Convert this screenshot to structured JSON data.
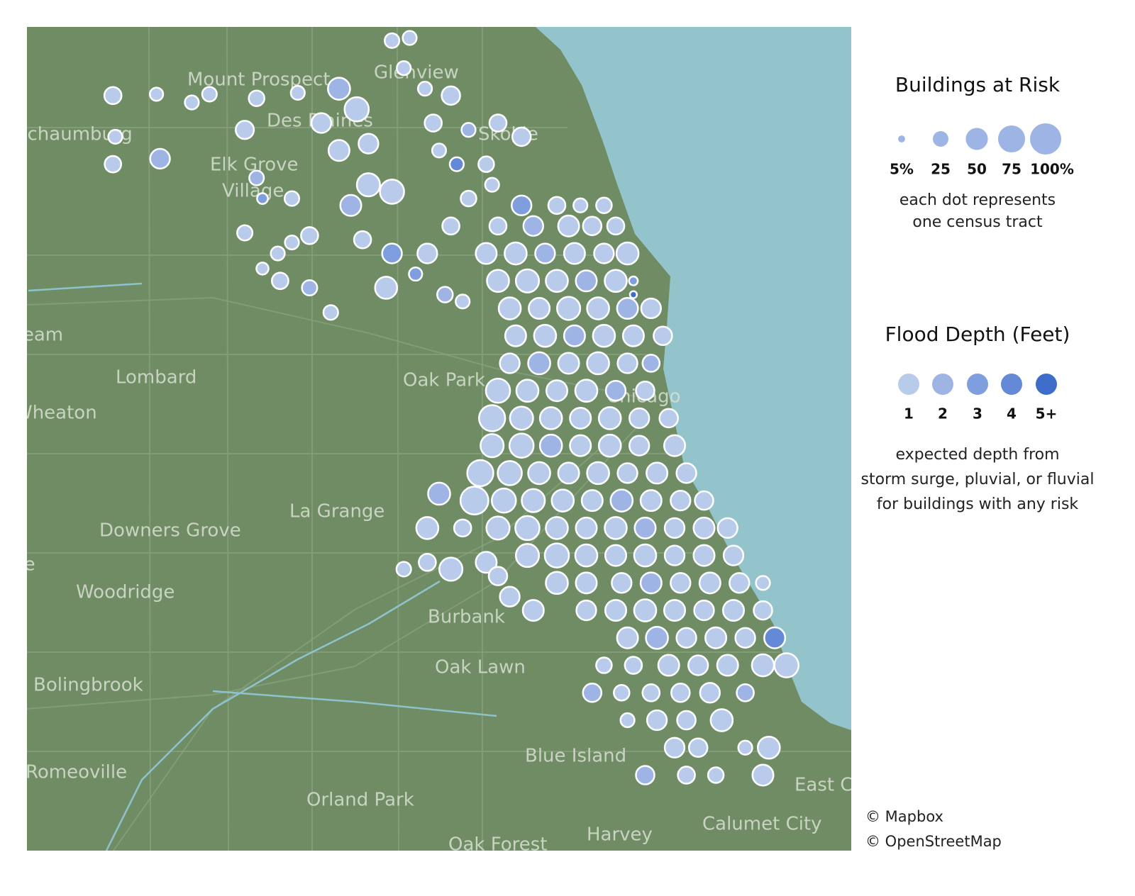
{
  "map": {
    "place_labels": [
      "Mount Prospect",
      "Glenview",
      "Des Plaines",
      "Skokie",
      "Schaumburg",
      "Elk Grove",
      "Village",
      "Stream",
      "Lombard",
      "Wheaton",
      "Oak Park",
      "Chicago",
      "La Grange",
      "Downers Grove",
      "Naperville",
      "Woodridge",
      "Burbank",
      "Oak Lawn",
      "Bolingbrook",
      "Blue Island",
      "Romeoville",
      "Orland Park",
      "Harvey",
      "East Chicago",
      "Calumet City",
      "Oak Forest"
    ],
    "tracts": [
      [
        -88.097,
        42.07,
        30,
        1
      ],
      [
        -88.095,
        42.04,
        20,
        1
      ],
      [
        -88.097,
        42.02,
        28,
        1
      ],
      [
        -88.06,
        42.071,
        18,
        1
      ],
      [
        -88.057,
        42.024,
        40,
        2
      ],
      [
        -88.03,
        42.065,
        20,
        1
      ],
      [
        -88.015,
        42.071,
        22,
        1
      ],
      [
        -87.975,
        42.068,
        25,
        1
      ],
      [
        -87.985,
        42.045,
        34,
        1
      ],
      [
        -87.975,
        42.01,
        22,
        2
      ],
      [
        -87.97,
        41.995,
        12,
        3
      ],
      [
        -87.985,
        41.97,
        24,
        1
      ],
      [
        -87.957,
        41.955,
        20,
        1
      ],
      [
        -87.97,
        41.944,
        15,
        1
      ],
      [
        -87.955,
        41.935,
        28,
        1
      ],
      [
        -87.93,
        41.93,
        24,
        2
      ],
      [
        -87.945,
        41.995,
        22,
        1
      ],
      [
        -87.945,
        41.963,
        20,
        1
      ],
      [
        -87.93,
        41.968,
        30,
        1
      ],
      [
        -87.912,
        41.912,
        22,
        1
      ],
      [
        -87.94,
        42.072,
        20,
        1
      ],
      [
        -87.92,
        42.05,
        40,
        1
      ],
      [
        -87.905,
        42.075,
        50,
        2
      ],
      [
        -87.89,
        42.06,
        60,
        1
      ],
      [
        -87.905,
        42.03,
        45,
        1
      ],
      [
        -87.88,
        42.035,
        40,
        1
      ],
      [
        -87.88,
        42.005,
        55,
        1
      ],
      [
        -87.895,
        41.99,
        45,
        2
      ],
      [
        -87.86,
        42.0,
        60,
        1
      ],
      [
        -87.885,
        41.965,
        30,
        1
      ],
      [
        -87.86,
        41.955,
        40,
        3
      ],
      [
        -87.865,
        41.93,
        50,
        1
      ],
      [
        -87.86,
        42.11,
        22,
        1
      ],
      [
        -87.845,
        42.112,
        20,
        1
      ],
      [
        -87.85,
        42.09,
        20,
        1
      ],
      [
        -87.832,
        42.075,
        20,
        1
      ],
      [
        -87.81,
        42.07,
        35,
        1
      ],
      [
        -87.825,
        42.05,
        30,
        1
      ],
      [
        -87.82,
        42.03,
        20,
        1
      ],
      [
        -87.795,
        42.045,
        20,
        2
      ],
      [
        -87.805,
        42.02,
        20,
        4
      ],
      [
        -87.795,
        41.995,
        25,
        1
      ],
      [
        -87.81,
        41.975,
        30,
        1
      ],
      [
        -87.83,
        41.955,
        40,
        1
      ],
      [
        -87.84,
        41.94,
        18,
        3
      ],
      [
        -87.815,
        41.925,
        25,
        2
      ],
      [
        -87.8,
        41.92,
        20,
        1
      ],
      [
        -87.78,
        42.02,
        25,
        1
      ],
      [
        -87.77,
        42.05,
        30,
        1
      ],
      [
        -87.75,
        42.04,
        35,
        1
      ],
      [
        -87.775,
        42.005,
        20,
        1
      ],
      [
        -87.75,
        41.99,
        40,
        3
      ],
      [
        -87.72,
        41.99,
        30,
        1
      ],
      [
        -87.7,
        41.99,
        20,
        1
      ],
      [
        -87.68,
        41.99,
        25,
        1
      ],
      [
        -87.77,
        41.975,
        30,
        1
      ],
      [
        -87.74,
        41.975,
        40,
        2
      ],
      [
        -87.71,
        41.975,
        45,
        1
      ],
      [
        -87.69,
        41.975,
        35,
        1
      ],
      [
        -87.67,
        41.975,
        30,
        1
      ],
      [
        -87.78,
        41.955,
        45,
        1
      ],
      [
        -87.755,
        41.955,
        50,
        1
      ],
      [
        -87.73,
        41.955,
        40,
        2
      ],
      [
        -87.705,
        41.955,
        45,
        1
      ],
      [
        -87.68,
        41.955,
        40,
        1
      ],
      [
        -87.66,
        41.955,
        50,
        1
      ],
      [
        -87.77,
        41.935,
        50,
        1
      ],
      [
        -87.745,
        41.935,
        55,
        1
      ],
      [
        -87.72,
        41.935,
        50,
        1
      ],
      [
        -87.695,
        41.935,
        45,
        2
      ],
      [
        -87.67,
        41.935,
        50,
        1
      ],
      [
        -87.76,
        41.915,
        50,
        1
      ],
      [
        -87.735,
        41.915,
        45,
        1
      ],
      [
        -87.71,
        41.915,
        55,
        1
      ],
      [
        -87.685,
        41.915,
        50,
        1
      ],
      [
        -87.66,
        41.915,
        45,
        2
      ],
      [
        -87.64,
        41.915,
        40,
        1
      ],
      [
        -87.755,
        41.895,
        45,
        1
      ],
      [
        -87.73,
        41.895,
        50,
        1
      ],
      [
        -87.705,
        41.895,
        45,
        2
      ],
      [
        -87.68,
        41.895,
        50,
        1
      ],
      [
        -87.655,
        41.895,
        45,
        1
      ],
      [
        -87.63,
        41.895,
        35,
        1
      ],
      [
        -87.76,
        41.875,
        40,
        1
      ],
      [
        -87.735,
        41.875,
        50,
        2
      ],
      [
        -87.71,
        41.875,
        45,
        1
      ],
      [
        -87.685,
        41.875,
        50,
        1
      ],
      [
        -87.66,
        41.875,
        40,
        1
      ],
      [
        -87.64,
        41.875,
        30,
        2
      ],
      [
        -87.77,
        41.855,
        60,
        1
      ],
      [
        -87.745,
        41.855,
        50,
        1
      ],
      [
        -87.72,
        41.855,
        45,
        1
      ],
      [
        -87.695,
        41.855,
        50,
        1
      ],
      [
        -87.67,
        41.855,
        40,
        2
      ],
      [
        -87.645,
        41.855,
        35,
        1
      ],
      [
        -87.775,
        41.835,
        70,
        1
      ],
      [
        -87.75,
        41.835,
        55,
        1
      ],
      [
        -87.725,
        41.835,
        50,
        1
      ],
      [
        -87.7,
        41.835,
        45,
        1
      ],
      [
        -87.675,
        41.835,
        50,
        1
      ],
      [
        -87.65,
        41.835,
        40,
        1
      ],
      [
        -87.625,
        41.835,
        35,
        1
      ],
      [
        -87.775,
        41.815,
        55,
        1
      ],
      [
        -87.75,
        41.815,
        60,
        1
      ],
      [
        -87.725,
        41.815,
        50,
        2
      ],
      [
        -87.7,
        41.815,
        45,
        1
      ],
      [
        -87.675,
        41.815,
        50,
        1
      ],
      [
        -87.65,
        41.815,
        40,
        1
      ],
      [
        -87.62,
        41.815,
        45,
        1
      ],
      [
        -87.785,
        41.795,
        70,
        1
      ],
      [
        -87.76,
        41.795,
        60,
        1
      ],
      [
        -87.735,
        41.795,
        50,
        1
      ],
      [
        -87.71,
        41.795,
        45,
        1
      ],
      [
        -87.685,
        41.795,
        50,
        1
      ],
      [
        -87.66,
        41.795,
        40,
        1
      ],
      [
        -87.635,
        41.795,
        45,
        1
      ],
      [
        -87.61,
        41.795,
        40,
        1
      ],
      [
        -87.82,
        41.78,
        50,
        2
      ],
      [
        -87.79,
        41.775,
        80,
        1
      ],
      [
        -87.765,
        41.775,
        60,
        1
      ],
      [
        -87.74,
        41.775,
        55,
        1
      ],
      [
        -87.715,
        41.775,
        50,
        1
      ],
      [
        -87.69,
        41.775,
        45,
        1
      ],
      [
        -87.665,
        41.775,
        50,
        2
      ],
      [
        -87.64,
        41.775,
        45,
        1
      ],
      [
        -87.615,
        41.775,
        40,
        1
      ],
      [
        -87.595,
        41.775,
        35,
        1
      ],
      [
        -87.83,
        41.755,
        50,
        1
      ],
      [
        -87.8,
        41.755,
        30,
        1
      ],
      [
        -87.77,
        41.755,
        55,
        1
      ],
      [
        -87.745,
        41.755,
        60,
        1
      ],
      [
        -87.72,
        41.755,
        50,
        1
      ],
      [
        -87.695,
        41.755,
        45,
        1
      ],
      [
        -87.67,
        41.755,
        50,
        1
      ],
      [
        -87.645,
        41.755,
        45,
        2
      ],
      [
        -87.62,
        41.755,
        40,
        1
      ],
      [
        -87.595,
        41.755,
        45,
        1
      ],
      [
        -87.575,
        41.755,
        40,
        1
      ],
      [
        -87.83,
        41.73,
        30,
        1
      ],
      [
        -87.81,
        41.725,
        55,
        1
      ],
      [
        -87.85,
        41.725,
        22,
        1
      ],
      [
        -87.78,
        41.73,
        45,
        1
      ],
      [
        -87.77,
        41.72,
        35,
        1
      ],
      [
        -87.76,
        41.705,
        40,
        1
      ],
      [
        -87.74,
        41.695,
        45,
        1
      ],
      [
        -87.745,
        41.735,
        55,
        1
      ],
      [
        -87.72,
        41.735,
        60,
        1
      ],
      [
        -87.695,
        41.735,
        50,
        1
      ],
      [
        -87.67,
        41.735,
        45,
        1
      ],
      [
        -87.645,
        41.735,
        50,
        1
      ],
      [
        -87.62,
        41.735,
        40,
        1
      ],
      [
        -87.595,
        41.735,
        45,
        1
      ],
      [
        -87.57,
        41.735,
        40,
        1
      ],
      [
        -87.72,
        41.715,
        50,
        1
      ],
      [
        -87.695,
        41.715,
        45,
        1
      ],
      [
        -87.665,
        41.715,
        40,
        1
      ],
      [
        -87.64,
        41.715,
        45,
        2
      ],
      [
        -87.615,
        41.715,
        40,
        1
      ],
      [
        -87.59,
        41.715,
        45,
        1
      ],
      [
        -87.565,
        41.715,
        40,
        1
      ],
      [
        -87.545,
        41.715,
        20,
        1
      ],
      [
        -87.695,
        41.695,
        40,
        1
      ],
      [
        -87.67,
        41.695,
        45,
        1
      ],
      [
        -87.645,
        41.695,
        50,
        1
      ],
      [
        -87.62,
        41.695,
        45,
        1
      ],
      [
        -87.595,
        41.695,
        40,
        1
      ],
      [
        -87.57,
        41.695,
        45,
        1
      ],
      [
        -87.545,
        41.695,
        35,
        1
      ],
      [
        -87.66,
        41.675,
        45,
        1
      ],
      [
        -87.635,
        41.675,
        50,
        2
      ],
      [
        -87.61,
        41.675,
        40,
        1
      ],
      [
        -87.585,
        41.675,
        45,
        1
      ],
      [
        -87.56,
        41.675,
        40,
        1
      ],
      [
        -87.535,
        41.675,
        45,
        4
      ],
      [
        -87.68,
        41.655,
        25,
        1
      ],
      [
        -87.655,
        41.655,
        30,
        1
      ],
      [
        -87.625,
        41.655,
        45,
        1
      ],
      [
        -87.6,
        41.655,
        40,
        1
      ],
      [
        -87.575,
        41.655,
        45,
        1
      ],
      [
        -87.545,
        41.655,
        50,
        1
      ],
      [
        -87.525,
        41.655,
        60,
        1
      ],
      [
        -87.69,
        41.635,
        35,
        2
      ],
      [
        -87.665,
        41.635,
        25,
        1
      ],
      [
        -87.64,
        41.635,
        30,
        1
      ],
      [
        -87.615,
        41.635,
        35,
        1
      ],
      [
        -87.59,
        41.635,
        40,
        1
      ],
      [
        -87.56,
        41.635,
        30,
        2
      ],
      [
        -87.66,
        41.615,
        20,
        1
      ],
      [
        -87.635,
        41.615,
        40,
        1
      ],
      [
        -87.61,
        41.615,
        35,
        1
      ],
      [
        -87.58,
        41.615,
        50,
        1
      ],
      [
        -87.62,
        41.595,
        40,
        1
      ],
      [
        -87.6,
        41.595,
        35,
        1
      ],
      [
        -87.54,
        41.595,
        50,
        1
      ],
      [
        -87.56,
        41.595,
        20,
        1
      ],
      [
        -87.645,
        41.575,
        35,
        2
      ],
      [
        -87.61,
        41.575,
        30,
        1
      ],
      [
        -87.585,
        41.575,
        25,
        1
      ],
      [
        -87.545,
        41.575,
        45,
        1
      ],
      [
        -87.655,
        41.935,
        8,
        3
      ],
      [
        -87.655,
        41.925,
        5,
        5
      ]
    ]
  },
  "legend": {
    "size": {
      "title": "Buildings at Risk",
      "values": [
        5,
        25,
        50,
        75,
        100
      ],
      "value_labels": [
        "5%",
        "25",
        "50",
        "75",
        "100%"
      ],
      "color": "#9db4e4",
      "note": [
        "each dot represents",
        "one census tract"
      ]
    },
    "depth": {
      "title": "Flood Depth (Feet)",
      "values": [
        1,
        2,
        3,
        4,
        5
      ],
      "value_labels": [
        "1",
        "2",
        "3",
        "4",
        "5+"
      ],
      "colors": [
        "#b9cbeb",
        "#9db4e4",
        "#7f9edd",
        "#6489d6",
        "#3e6cc9"
      ],
      "note": [
        "expected depth from",
        "storm surge, pluvial, or fluvial",
        "for buildings with any risk"
      ]
    }
  },
  "attribution": [
    "© Mapbox",
    "© OpenStreetMap"
  ]
}
